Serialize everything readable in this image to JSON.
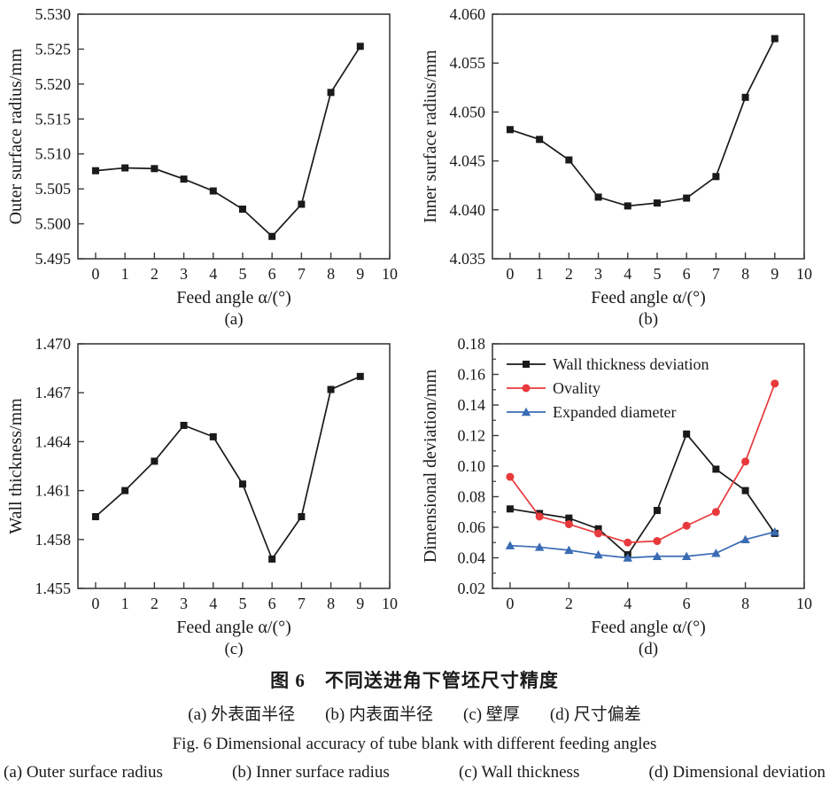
{
  "figure": {
    "caption_cn_title": "图 6　不同送进角下管坯尺寸精度",
    "caption_cn_parts": [
      "(a) 外表面半径",
      "(b) 内表面半径",
      "(c) 壁厚",
      "(d) 尺寸偏差"
    ],
    "caption_en_title": "Fig. 6   Dimensional accuracy of tube blank with different feeding angles",
    "caption_en_parts": [
      "(a)  Outer surface radius",
      "(b)  Inner surface radius",
      "(c)  Wall thickness",
      "(d)  Dimensional deviation"
    ]
  },
  "colors": {
    "black_series": "#1a1a1a",
    "red_series": "#e8393c",
    "blue_series": "#3a6cb4",
    "axis": "#3c3c3c",
    "text": "#1a1a1a"
  },
  "chart_data": [
    {
      "type": "line",
      "panel_label": "(a)",
      "xlabel": "Feed angle  α/(°)",
      "ylabel": "Outer surface radius/mm",
      "xlim": [
        -0.6,
        10
      ],
      "ylim": [
        5.495,
        5.53
      ],
      "grid": false,
      "xticks": [
        0,
        1,
        2,
        3,
        4,
        5,
        6,
        7,
        8,
        9,
        10
      ],
      "xtick_labels": [
        "0",
        "1",
        "2",
        "3",
        "4",
        "5",
        "6",
        "7",
        "8",
        "9",
        "10"
      ],
      "yticks": [
        5.495,
        5.5,
        5.505,
        5.51,
        5.515,
        5.52,
        5.525,
        5.53
      ],
      "ytick_labels": [
        "5.495",
        "5.500",
        "5.505",
        "5.510",
        "5.515",
        "5.520",
        "5.525",
        "5.530"
      ],
      "x": [
        0,
        1,
        2,
        3,
        4,
        5,
        6,
        7,
        8,
        9
      ],
      "series": [
        {
          "name": "Outer surface radius",
          "color": "#1a1a1a",
          "marker": "square",
          "values": [
            5.5076,
            5.508,
            5.5079,
            5.5064,
            5.5047,
            5.5021,
            5.4982,
            5.5028,
            5.5188,
            5.5254
          ]
        }
      ],
      "legend": false
    },
    {
      "type": "line",
      "panel_label": "(b)",
      "xlabel": "Feed angle  α/(°)",
      "ylabel": "Inner surface radius/mm",
      "xlim": [
        -0.6,
        10
      ],
      "ylim": [
        4.035,
        4.06
      ],
      "grid": false,
      "xticks": [
        0,
        1,
        2,
        3,
        4,
        5,
        6,
        7,
        8,
        9,
        10
      ],
      "xtick_labels": [
        "0",
        "1",
        "2",
        "3",
        "4",
        "5",
        "6",
        "7",
        "8",
        "9",
        "10"
      ],
      "yticks": [
        4.035,
        4.04,
        4.045,
        4.05,
        4.055,
        4.06
      ],
      "ytick_labels": [
        "4.035",
        "4.040",
        "4.045",
        "4.050",
        "4.055",
        "4.060"
      ],
      "x": [
        0,
        1,
        2,
        3,
        4,
        5,
        6,
        7,
        8,
        9
      ],
      "series": [
        {
          "name": "Inner surface radius",
          "color": "#1a1a1a",
          "marker": "square",
          "values": [
            4.0482,
            4.0472,
            4.0451,
            4.0413,
            4.0404,
            4.0407,
            4.0412,
            4.0434,
            4.0515,
            4.0575
          ]
        }
      ],
      "legend": false
    },
    {
      "type": "line",
      "panel_label": "(c)",
      "xlabel": "Feed angle  α/(°)",
      "ylabel": "Wall thickness/mm",
      "xlim": [
        -0.6,
        10
      ],
      "ylim": [
        1.455,
        1.47
      ],
      "grid": false,
      "xticks": [
        0,
        1,
        2,
        3,
        4,
        5,
        6,
        7,
        8,
        9,
        10
      ],
      "xtick_labels": [
        "0",
        "1",
        "2",
        "3",
        "4",
        "5",
        "6",
        "7",
        "8",
        "9",
        "10"
      ],
      "yticks": [
        1.455,
        1.458,
        1.461,
        1.464,
        1.467,
        1.47
      ],
      "ytick_labels": [
        "1.455",
        "1.458",
        "1.461",
        "1.464",
        "1.467",
        "1.470"
      ],
      "x": [
        0,
        1,
        2,
        3,
        4,
        5,
        6,
        7,
        8,
        9
      ],
      "series": [
        {
          "name": "Wall thickness",
          "color": "#1a1a1a",
          "marker": "square",
          "values": [
            1.4594,
            1.461,
            1.4628,
            1.465,
            1.4643,
            1.4614,
            1.4568,
            1.4594,
            1.4672,
            1.468
          ]
        }
      ],
      "legend": false
    },
    {
      "type": "line",
      "panel_label": "(d)",
      "xlabel": "Feed angle  α/(°)",
      "ylabel": "Dimensional deviation/mm",
      "xlim": [
        -0.6,
        10
      ],
      "ylim": [
        0.02,
        0.18
      ],
      "grid": false,
      "xticks": [
        0,
        2,
        4,
        6,
        8,
        10
      ],
      "xtick_labels": [
        "0",
        "2",
        "4",
        "6",
        "8",
        "10"
      ],
      "yticks": [
        0.02,
        0.04,
        0.06,
        0.08,
        0.1,
        0.12,
        0.14,
        0.16,
        0.18
      ],
      "ytick_labels": [
        "0.02",
        "0.04",
        "0.06",
        "0.08",
        "0.10",
        "0.12",
        "0.14",
        "0.16",
        "0.18"
      ],
      "yticks_minor": [
        0.03,
        0.05,
        0.07,
        0.09,
        0.11,
        0.13,
        0.15,
        0.17
      ],
      "x": [
        0,
        1,
        2,
        3,
        4,
        5,
        6,
        7,
        8,
        9
      ],
      "series": [
        {
          "name": "Wall thickness deviation",
          "color": "#1a1a1a",
          "marker": "square",
          "values": [
            0.072,
            0.069,
            0.066,
            0.059,
            0.042,
            0.071,
            0.121,
            0.098,
            0.084,
            0.056
          ]
        },
        {
          "name": "Ovality",
          "color": "#e8393c",
          "marker": "circle",
          "values": [
            0.093,
            0.067,
            0.062,
            0.056,
            0.05,
            0.051,
            0.061,
            0.07,
            0.103,
            0.154
          ]
        },
        {
          "name": "Expanded diameter",
          "color": "#3a6cb4",
          "marker": "triangle",
          "values": [
            0.048,
            0.047,
            0.045,
            0.042,
            0.04,
            0.041,
            0.041,
            0.043,
            0.052,
            0.057
          ]
        }
      ],
      "legend": true,
      "legend_position": "top-left"
    }
  ]
}
